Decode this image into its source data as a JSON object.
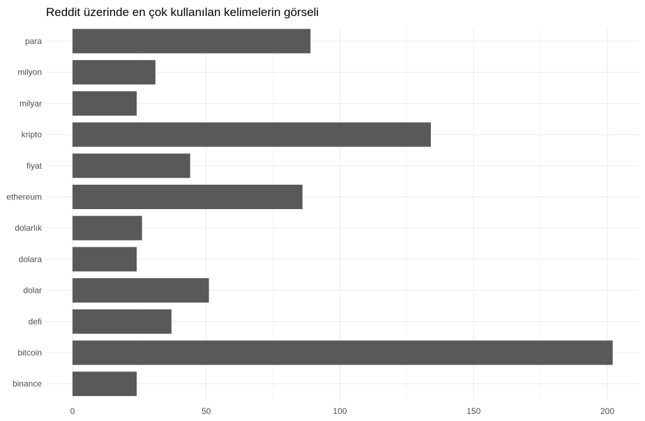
{
  "chart_data": {
    "type": "bar",
    "orientation": "horizontal",
    "title": "Reddit üzerinde en çok kullanılan kelimelerin görseli",
    "xlabel": "",
    "ylabel": "",
    "categories": [
      "para",
      "milyon",
      "milyar",
      "kripto",
      "fiyat",
      "ethereum",
      "dolarlık",
      "dolara",
      "dolar",
      "defi",
      "bitcoin",
      "binance"
    ],
    "values": [
      89,
      31,
      24,
      134,
      44,
      86,
      26,
      24,
      51,
      37,
      202,
      24
    ],
    "xlim": [
      0,
      212
    ],
    "x_ticks": [
      "0",
      "50",
      "100",
      "150",
      "200"
    ],
    "bar_color": "#595959",
    "grid": true,
    "legend": "none"
  }
}
